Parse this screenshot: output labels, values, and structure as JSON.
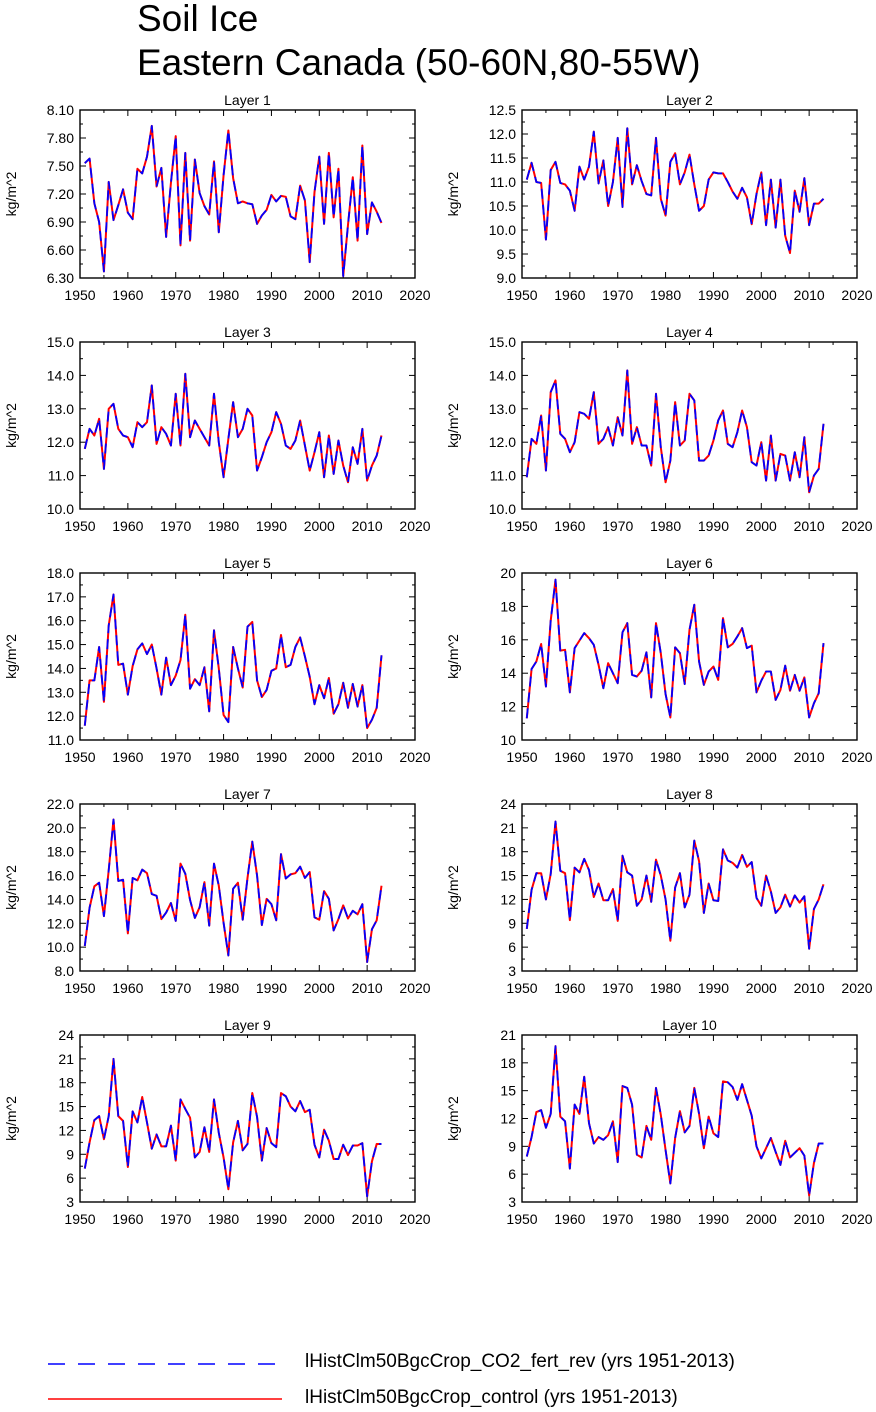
{
  "figure": {
    "title_line1": "Soil Ice",
    "title_line2": "Eastern Canada (50-60N,80-55W)"
  },
  "legend": [
    {
      "label": "lHistClm50BgcCrop_CO2_fert_rev (yrs 1951-2013)",
      "color": "#0000ff",
      "style": "dashed"
    },
    {
      "label": "lHistClm50BgcCrop_control (yrs 1951-2013)",
      "color": "#ff0000",
      "style": "solid"
    }
  ],
  "chart_data": [
    {
      "type": "line",
      "title": "Layer 1",
      "xlabel": "",
      "ylabel": "kg/m^2",
      "xlim": [
        1950,
        2020
      ],
      "xticks": [
        1950,
        1960,
        1970,
        1980,
        1990,
        2000,
        2010,
        2020
      ],
      "ylim": [
        6.3,
        8.1
      ],
      "yticks": [
        "6.30",
        "6.60",
        "6.90",
        "7.20",
        "7.50",
        "7.80",
        "8.10"
      ],
      "x_start": 1951,
      "values": [
        7.53,
        7.58,
        7.1,
        6.9,
        6.37,
        7.33,
        6.92,
        7.08,
        7.25,
        7,
        6.93,
        7.47,
        7.42,
        7.6,
        7.93,
        7.28,
        7.48,
        6.74,
        7.32,
        7.82,
        6.65,
        7.64,
        6.7,
        7.57,
        7.21,
        7.07,
        6.98,
        7.55,
        6.79,
        7.4,
        7.88,
        7.37,
        7.1,
        7.12,
        7.1,
        7.09,
        6.88,
        6.97,
        7.03,
        7.19,
        7.12,
        7.18,
        7.17,
        6.96,
        6.93,
        7.29,
        7.13,
        6.47,
        7.22,
        7.6,
        6.88,
        7.64,
        6.95,
        7.47,
        6.32,
        6.87,
        7.38,
        6.7,
        7.72,
        6.77,
        7.11,
        7.01,
        6.89
      ]
    },
    {
      "type": "line",
      "title": "Layer 2",
      "xlabel": "",
      "ylabel": "kg/m^2",
      "xlim": [
        1950,
        2020
      ],
      "xticks": [
        1950,
        1960,
        1970,
        1980,
        1990,
        2000,
        2010,
        2020
      ],
      "ylim": [
        9.0,
        12.5
      ],
      "yticks": [
        "9.0",
        "9.5",
        "10.0",
        "10.5",
        "11.0",
        "11.5",
        "12.0",
        "12.5"
      ],
      "x_start": 1951,
      "values": [
        11.05,
        11.4,
        11,
        10.98,
        9.8,
        11.25,
        11.42,
        10.98,
        10.95,
        10.82,
        10.4,
        11.32,
        11.05,
        11.32,
        12.05,
        10.97,
        11.45,
        10.5,
        11.0,
        11.92,
        10.48,
        12.12,
        10.95,
        11.35,
        11.02,
        10.75,
        10.72,
        11.92,
        10.65,
        10.3,
        11.42,
        11.6,
        10.95,
        11.2,
        11.57,
        10.95,
        10.4,
        10.5,
        11.05,
        11.2,
        11.18,
        11.18,
        11.0,
        10.8,
        10.65,
        10.88,
        10.68,
        10.12,
        10.75,
        11.2,
        10.1,
        11.05,
        10.05,
        11.05,
        9.88,
        9.52,
        10.82,
        10.38,
        11.08,
        10.1,
        10.55,
        10.55,
        10.65
      ]
    },
    {
      "type": "line",
      "title": "Layer 3",
      "xlabel": "",
      "ylabel": "kg/m^2",
      "xlim": [
        1950,
        2020
      ],
      "xticks": [
        1950,
        1960,
        1970,
        1980,
        1990,
        2000,
        2010,
        2020
      ],
      "ylim": [
        10.0,
        15.0
      ],
      "yticks": [
        "10.0",
        "11.0",
        "12.0",
        "13.0",
        "14.0",
        "15.0"
      ],
      "x_start": 1951,
      "values": [
        11.8,
        12.4,
        12.2,
        12.7,
        11.2,
        13.0,
        13.15,
        12.4,
        12.2,
        12.15,
        11.85,
        12.6,
        12.45,
        12.6,
        13.7,
        11.95,
        12.45,
        12.25,
        11.9,
        13.45,
        11.9,
        14.05,
        12.15,
        12.65,
        12.4,
        12.15,
        11.9,
        13.45,
        12.0,
        10.95,
        12.1,
        13.2,
        12.15,
        12.4,
        13.0,
        12.8,
        11.15,
        11.55,
        12.0,
        12.3,
        12.9,
        12.55,
        11.9,
        11.8,
        12.05,
        12.65,
        11.9,
        11.15,
        11.7,
        12.3,
        10.95,
        12.2,
        11.05,
        12.05,
        11.3,
        10.8,
        11.85,
        11.35,
        12.4,
        10.85,
        11.3,
        11.6,
        12.2
      ]
    },
    {
      "type": "line",
      "title": "Layer 4",
      "xlabel": "",
      "ylabel": "kg/m^2",
      "xlim": [
        1950,
        2020
      ],
      "xticks": [
        1950,
        1960,
        1970,
        1980,
        1990,
        2000,
        2010,
        2020
      ],
      "ylim": [
        10.0,
        15.0
      ],
      "yticks": [
        "10.0",
        "11.0",
        "12.0",
        "13.0",
        "14.0",
        "15.0"
      ],
      "x_start": 1951,
      "values": [
        10.95,
        12.1,
        11.95,
        12.8,
        11.15,
        13.5,
        13.85,
        12.25,
        12.1,
        11.7,
        12.0,
        12.9,
        12.85,
        12.7,
        13.5,
        11.95,
        12.1,
        12.45,
        11.9,
        12.75,
        12.2,
        14.15,
        11.95,
        12.45,
        11.9,
        11.9,
        11.3,
        13.45,
        11.85,
        10.8,
        11.45,
        13.2,
        11.9,
        12.05,
        13.45,
        13.25,
        11.45,
        11.45,
        11.6,
        12.05,
        12.65,
        12.95,
        11.95,
        11.85,
        12.3,
        12.95,
        12.45,
        11.4,
        11.3,
        12.0,
        10.85,
        12.2,
        10.85,
        11.65,
        11.6,
        10.85,
        11.7,
        10.95,
        12.15,
        10.5,
        11.0,
        11.2,
        12.55
      ]
    },
    {
      "type": "line",
      "title": "Layer 5",
      "xlabel": "",
      "ylabel": "kg/m^2",
      "xlim": [
        1950,
        2020
      ],
      "xticks": [
        1950,
        1960,
        1970,
        1980,
        1990,
        2000,
        2010,
        2020
      ],
      "ylim": [
        11.0,
        18.0
      ],
      "yticks": [
        "11.0",
        "12.0",
        "13.0",
        "14.0",
        "15.0",
        "16.0",
        "17.0",
        "18.0"
      ],
      "x_start": 1951,
      "values": [
        11.6,
        13.5,
        13.5,
        14.9,
        12.6,
        15.8,
        17.1,
        14.15,
        14.2,
        12.9,
        14.1,
        14.8,
        15.05,
        14.6,
        15.0,
        14.0,
        12.9,
        14.45,
        13.3,
        13.7,
        14.35,
        16.25,
        13.15,
        13.55,
        13.3,
        14.05,
        12.2,
        15.6,
        14.0,
        12.05,
        11.75,
        14.9,
        14.0,
        13.2,
        15.75,
        15.95,
        13.5,
        12.8,
        13.1,
        13.9,
        14.0,
        15.4,
        14.05,
        14.15,
        14.9,
        15.3,
        14.5,
        13.65,
        12.5,
        13.3,
        12.75,
        13.6,
        12.1,
        12.5,
        13.4,
        12.35,
        13.35,
        12.4,
        13.3,
        11.5,
        11.85,
        12.35,
        14.55
      ]
    },
    {
      "type": "line",
      "title": "Layer 6",
      "xlabel": "",
      "ylabel": "kg/m^2",
      "xlim": [
        1950,
        2020
      ],
      "xticks": [
        1950,
        1960,
        1970,
        1980,
        1990,
        2000,
        2010,
        2020
      ],
      "ylim": [
        10,
        20
      ],
      "yticks": [
        "10",
        "12",
        "14",
        "16",
        "18",
        "20"
      ],
      "x_start": 1951,
      "values": [
        11.3,
        14.25,
        14.7,
        15.75,
        13.2,
        17.15,
        19.6,
        15.35,
        15.4,
        12.85,
        15.5,
        15.95,
        16.4,
        16.1,
        15.7,
        14.5,
        13.1,
        14.6,
        14.0,
        13.4,
        16.45,
        17.0,
        13.9,
        13.8,
        14.15,
        15.25,
        12.55,
        17.0,
        15.2,
        12.75,
        11.35,
        15.55,
        15.2,
        13.35,
        16.6,
        18.1,
        14.7,
        13.3,
        14.1,
        14.4,
        13.6,
        17.3,
        15.55,
        15.75,
        16.2,
        16.7,
        15.5,
        15.65,
        12.85,
        13.55,
        14.1,
        14.1,
        12.4,
        13.0,
        14.45,
        12.95,
        13.9,
        12.95,
        13.75,
        11.35,
        12.2,
        12.8,
        15.8
      ]
    },
    {
      "type": "line",
      "title": "Layer 7",
      "xlabel": "",
      "ylabel": "kg/m^2",
      "xlim": [
        1950,
        2020
      ],
      "xticks": [
        1950,
        1960,
        1970,
        1980,
        1990,
        2000,
        2010,
        2020
      ],
      "ylim": [
        8.0,
        22.0
      ],
      "yticks": [
        "8.0",
        "10.0",
        "12.0",
        "14.0",
        "16.0",
        "18.0",
        "20.0",
        "22.0"
      ],
      "x_start": 1951,
      "values": [
        10.1,
        13.3,
        15.1,
        15.4,
        12.6,
        16.45,
        20.7,
        15.55,
        15.65,
        11.15,
        15.8,
        15.6,
        16.5,
        16.2,
        14.45,
        14.3,
        12.35,
        12.9,
        13.7,
        12.2,
        17.0,
        16.15,
        13.95,
        12.45,
        13.35,
        15.45,
        11.8,
        17.0,
        15.15,
        12.05,
        9.3,
        14.9,
        15.4,
        12.3,
        15.8,
        18.85,
        16.0,
        11.85,
        14.05,
        13.6,
        12.25,
        17.8,
        15.75,
        16.1,
        16.2,
        16.75,
        15.8,
        16.3,
        12.5,
        12.3,
        14.7,
        14.05,
        11.4,
        12.35,
        13.5,
        12.4,
        13.05,
        12.75,
        13.6,
        8.75,
        11.5,
        12.25,
        15.15
      ]
    },
    {
      "type": "line",
      "title": "Layer 8",
      "xlabel": "",
      "ylabel": "kg/m^2",
      "xlim": [
        1950,
        2020
      ],
      "xticks": [
        1950,
        1960,
        1970,
        1980,
        1990,
        2000,
        2010,
        2020
      ],
      "ylim": [
        3,
        24
      ],
      "yticks": [
        "3",
        "6",
        "9",
        "12",
        "15",
        "18",
        "21",
        "24"
      ],
      "x_start": 1951,
      "values": [
        8.3,
        13.2,
        15.3,
        15.3,
        12.0,
        15.2,
        21.8,
        15.6,
        15.3,
        9.4,
        16.0,
        15.4,
        17.1,
        15.7,
        12.3,
        14.0,
        11.9,
        11.9,
        13.3,
        9.3,
        17.5,
        15.4,
        15.0,
        11.2,
        12.0,
        15.0,
        11.7,
        17.0,
        15.0,
        12.0,
        6.8,
        13.5,
        15.3,
        11.0,
        12.6,
        19.4,
        16.8,
        10.3,
        14.0,
        11.9,
        11.8,
        18.3,
        16.9,
        16.6,
        16.0,
        17.6,
        16.1,
        16.7,
        12.2,
        11.2,
        15.0,
        13.0,
        10.3,
        11.0,
        12.6,
        11.1,
        12.5,
        11.6,
        12.4,
        5.8,
        10.8,
        12.0,
        13.9
      ]
    },
    {
      "type": "line",
      "title": "Layer 9",
      "xlabel": "",
      "ylabel": "kg/m^2",
      "xlim": [
        1950,
        2020
      ],
      "xticks": [
        1950,
        1960,
        1970,
        1980,
        1990,
        2000,
        2010,
        2020
      ],
      "ylim": [
        3,
        24
      ],
      "yticks": [
        "3",
        "6",
        "9",
        "12",
        "15",
        "18",
        "21",
        "24"
      ],
      "x_start": 1951,
      "values": [
        7.2,
        10.5,
        13.3,
        13.8,
        10.9,
        13.8,
        21.0,
        13.8,
        13.2,
        7.4,
        14.4,
        13.0,
        16.2,
        13.0,
        9.7,
        11.5,
        10.0,
        10.0,
        12.6,
        8.2,
        15.9,
        14.7,
        13.6,
        8.6,
        9.3,
        12.4,
        9.3,
        15.9,
        11.7,
        8.6,
        4.6,
        10.5,
        13.2,
        9.5,
        10.3,
        16.7,
        13.7,
        8.2,
        12.3,
        10.4,
        9.9,
        16.7,
        16.3,
        15.0,
        14.4,
        15.7,
        14.3,
        14.6,
        10.2,
        8.6,
        12.1,
        10.7,
        8.4,
        8.4,
        10.2,
        8.9,
        10.1,
        10.1,
        10.4,
        3.7,
        8.1,
        10.3,
        10.3
      ]
    },
    {
      "type": "line",
      "title": "Layer 10",
      "xlabel": "",
      "ylabel": "kg/m^2",
      "xlim": [
        1950,
        2020
      ],
      "xticks": [
        1950,
        1960,
        1970,
        1980,
        1990,
        2000,
        2010,
        2020
      ],
      "ylim": [
        3,
        21
      ],
      "yticks": [
        "3",
        "6",
        "9",
        "12",
        "15",
        "18",
        "21"
      ],
      "x_start": 1951,
      "values": [
        7.9,
        10.0,
        12.7,
        12.9,
        11.0,
        12.5,
        19.8,
        12.2,
        11.7,
        6.6,
        13.5,
        12.5,
        16.5,
        11.5,
        9.3,
        10.0,
        9.7,
        10.2,
        11.7,
        7.3,
        15.5,
        15.3,
        13.5,
        8.1,
        7.8,
        11.2,
        9.7,
        15.3,
        12.4,
        8.6,
        5.0,
        9.9,
        12.8,
        10.5,
        11.2,
        15.3,
        12.5,
        8.8,
        12.2,
        10.4,
        10.0,
        16.0,
        15.9,
        15.4,
        14.0,
        15.7,
        14.0,
        12.3,
        9.0,
        7.7,
        8.8,
        9.9,
        8.4,
        7.0,
        9.6,
        7.8,
        8.3,
        8.8,
        8.0,
        3.7,
        7.2,
        9.3,
        9.3
      ]
    }
  ]
}
